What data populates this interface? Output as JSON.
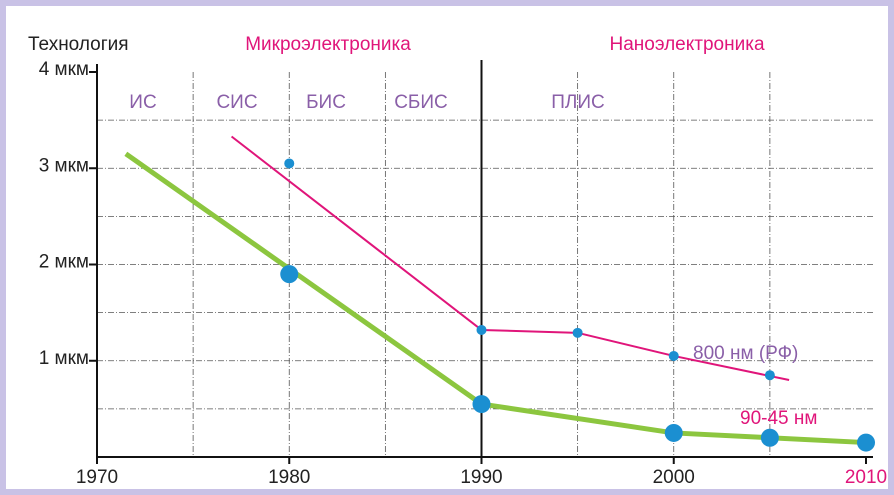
{
  "chart_data": {
    "type": "line",
    "y_axis_title": "Технология",
    "headers": [
      "Микроэлектроника",
      "Наноэлектроника"
    ],
    "eras": [
      "ИС",
      "СИС",
      "БИС",
      "СБИС",
      "ПЛИС"
    ],
    "annotations": [
      "800 нм (РФ)",
      "90-45 нм"
    ],
    "xlim": [
      1970,
      2010
    ],
    "xticks": [
      1970,
      1980,
      1990,
      2000,
      2010
    ],
    "xgrid": [
      1975,
      1980,
      1985,
      1995,
      2000,
      2005
    ],
    "xdivider": 1990,
    "ylim": [
      0,
      4
    ],
    "yticks": [
      {
        "value": 1,
        "label": "1 мкм"
      },
      {
        "value": 2,
        "label": "2 мкм"
      },
      {
        "value": 3,
        "label": "3 мкм"
      },
      {
        "value": 4,
        "label": "4 мкм"
      }
    ],
    "ygrid": [
      0.5,
      1,
      1.5,
      2,
      2.5,
      3,
      3.5
    ],
    "series": [
      {
        "style": "line",
        "color": "#e0157a",
        "width": 2,
        "x": [
          1977,
          1990,
          1995,
          2000,
          2006
        ],
        "values": [
          3.33,
          1.32,
          1.29,
          1.05,
          0.8
        ]
      },
      {
        "style": "points",
        "color": "#1b8fd1",
        "radius": 5,
        "x": [
          1980,
          1990,
          1995,
          2000,
          2005
        ],
        "values": [
          3.05,
          1.32,
          1.29,
          1.05,
          0.85
        ]
      },
      {
        "style": "line",
        "color": "#8cc63f",
        "width": 5,
        "x": [
          1971.5,
          1990,
          2000,
          2010
        ],
        "values": [
          3.15,
          0.55,
          0.25,
          0.15
        ]
      },
      {
        "style": "points",
        "color": "#1b8fd1",
        "radius": 9,
        "x": [
          1980,
          1990,
          2000,
          2005,
          2010
        ],
        "values": [
          1.9,
          0.55,
          0.25,
          0.2,
          0.15
        ]
      }
    ]
  }
}
